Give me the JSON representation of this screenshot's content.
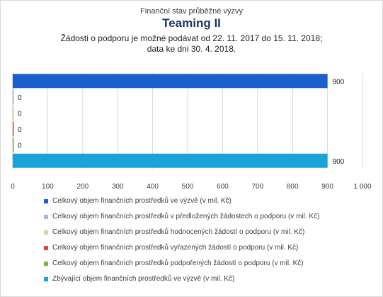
{
  "chart_data": {
    "type": "bar",
    "orientation": "horizontal",
    "title_lines": [
      "Finanční stav průběžné výzvy",
      "Teaming II",
      "Žádosti o podporu je možné  podávat od 22. 11. 2017 do 15. 11. 2018;",
      "data ke dni 30. 4. 2018."
    ],
    "series": [
      {
        "name": "Celkový objem finančních prostředků ve výzvě (v mil. Kč)",
        "value": 900,
        "label": "900",
        "color": "#1a5fcb"
      },
      {
        "name": "Celkový objem finančních prostředků v předložených žádostech o podporu (v mil. Kč)",
        "value": 0,
        "label": "0",
        "color": "#a6b8d9"
      },
      {
        "name": "Celkový objem finančních prostředků hodnocených žádostí o podporu (v mil. Kč)",
        "value": 0,
        "label": "0",
        "color": "#c5dbb0"
      },
      {
        "name": "Celkový objem finančních prostředků vyřazených žádostí o podporu (v mil. Kč)",
        "value": 0,
        "label": "0",
        "color": "#e0474c"
      },
      {
        "name": "Celkový objem finančních prostředků podpořených žádostí o podporu (v mil. Kč)",
        "value": 0,
        "label": "0",
        "color": "#7ab648"
      },
      {
        "name": "Zbývající objem finančních prostředků ve výzvě (v mil. Kč)",
        "value": 900,
        "label": "900",
        "color": "#1aa3d9"
      }
    ],
    "xlim": [
      0,
      1000
    ],
    "xticks": [
      0,
      100,
      200,
      300,
      400,
      500,
      600,
      700,
      800,
      900,
      1000
    ],
    "xtick_labels": [
      "0",
      "100",
      "200",
      "300",
      "400",
      "500",
      "600",
      "700",
      "800",
      "900",
      "1 000"
    ],
    "grid": true,
    "legend_position": "bottom"
  }
}
